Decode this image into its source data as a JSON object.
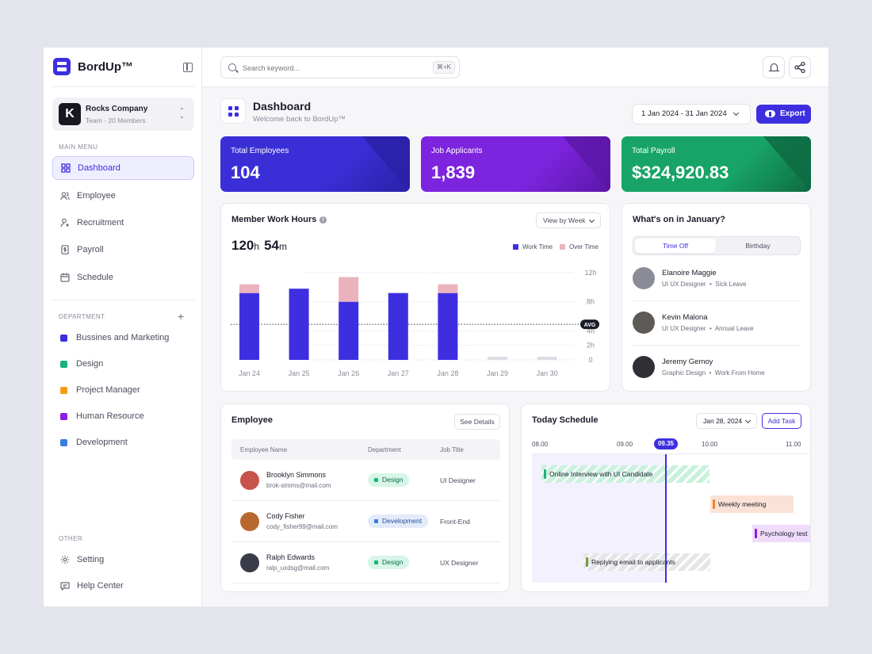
{
  "sidebar": {
    "brand": "BordUp™",
    "company": {
      "logo_letter": "K",
      "name": "Rocks Company",
      "sub": "Team - 20 Members"
    },
    "main_menu_title": "MAIN MENU",
    "main_menu": [
      "Dashboard",
      "Employee",
      "Recruitment",
      "Payroll",
      "Schedule"
    ],
    "department_title": "DEPARTMENT",
    "departments": [
      {
        "name": "Bussines and Marketing",
        "color": "#3d2fe0"
      },
      {
        "name": "Design",
        "color": "#17b47b"
      },
      {
        "name": "Project Manager",
        "color": "#f39c12"
      },
      {
        "name": "Human Resource",
        "color": "#8a1ee0"
      },
      {
        "name": "Development",
        "color": "#3b7de0"
      }
    ],
    "other_title": "OTHER",
    "other_menu": [
      "Setting",
      "Help Center"
    ]
  },
  "topbar": {
    "search_placeholder": "Search keyword...",
    "shortcut": "⌘+K"
  },
  "header": {
    "title": "Dashboard",
    "subtitle": "Welcome back to BordUp™",
    "date_range": "1 Jan 2024 - 31 Jan 2024",
    "export_label": "Export"
  },
  "stats": [
    {
      "label": "Total Employees",
      "value": "104",
      "color": "#3a2fd6",
      "dark": "#2a21a8"
    },
    {
      "label": "Job Applicants",
      "value": "1,839",
      "color": "#7d24de",
      "dark": "#5b17a8"
    },
    {
      "label": "Total Payroll",
      "value": "$324,920.83",
      "color": "#18a468",
      "dark": "#0e6b43"
    }
  ],
  "work_hours": {
    "title": "Member Work Hours",
    "view_label": "View by Week",
    "total_h": "120",
    "total_m": "54",
    "unit_h": "h",
    "unit_m": "m",
    "legend_work": "Work Time",
    "legend_over": "Over Time",
    "avg_label": "AVG"
  },
  "chart_data": {
    "type": "bar",
    "categories": [
      "Jan 24",
      "Jan 25",
      "Jan 26",
      "Jan 27",
      "Jan 28",
      "Jan 29",
      "Jan 30"
    ],
    "series": [
      {
        "name": "Work Time",
        "values": [
          9.2,
          9.8,
          8.0,
          9.2,
          9.2,
          0.4,
          0.4
        ],
        "color": "#3d2fe0"
      },
      {
        "name": "Over Time",
        "values": [
          1.2,
          0,
          3.4,
          0,
          1.2,
          0,
          0
        ],
        "color": "#ebb3bd"
      }
    ],
    "y_ticks": [
      "12h",
      "8h",
      "4h",
      "2h",
      "0"
    ],
    "ylim": [
      0,
      12
    ],
    "avg": 4.9
  },
  "january": {
    "title": "What's on in January?",
    "tabs": [
      "Time Off",
      "Birthday"
    ],
    "people": [
      {
        "name": "Elanoire Maggie",
        "role": "UI UX Designer",
        "note": "Sick Leave",
        "avatar": "#8a8c99"
      },
      {
        "name": "Kevin Malona",
        "role": "UI UX Designer",
        "note": "Annual Leave",
        "avatar": "#5e5a56"
      },
      {
        "name": "Jeremy Gemoy",
        "role": "Graphic Design",
        "note": "Work From Home",
        "avatar": "#2f2f36"
      }
    ]
  },
  "employee": {
    "title": "Employee",
    "see_details": "See Details",
    "columns": [
      "Employee Name",
      "Department",
      "Job Title"
    ],
    "rows": [
      {
        "name": "Brooklyn Simmons",
        "email": "brok-simms@mail.com",
        "dept": "Design",
        "job": "UI Designer",
        "badge_bg": "#d7f5e8",
        "badge_dot": "#17b47b",
        "avatar": "#c9524c"
      },
      {
        "name": "Cody Fisher",
        "email": "cody_fisher99@mail.com",
        "dept": "Development",
        "job": "Front-End",
        "badge_bg": "#e3ebfb",
        "badge_dot": "#3b7de0",
        "avatar": "#b8682e"
      },
      {
        "name": "Ralph Edwards",
        "email": "ralp_uxdsg@mail.com",
        "dept": "Design",
        "job": "UX Designer",
        "badge_bg": "#d7f5e8",
        "badge_dot": "#17b47b",
        "avatar": "#3a3b48"
      }
    ]
  },
  "schedule": {
    "title": "Today Schedule",
    "date": "Jan 28, 2024",
    "add_task": "Add Task",
    "times": [
      "08.00",
      "09.00",
      "10.00",
      "11.00"
    ],
    "now": "09.35",
    "events": [
      {
        "label": "Online Interview with UI Candidate",
        "bg": "#c9f1dc",
        "bar": "#17b47b",
        "striped": true
      },
      {
        "label": "Weekly meeting",
        "bg": "#fbe2d6",
        "bar": "#f0822f",
        "striped": false
      },
      {
        "label": "Psychology test",
        "bg": "#efdcfb",
        "bar": "#8a1ee0",
        "striped": false
      },
      {
        "label": "Replying email to applicants",
        "bg": "#e5e6e7",
        "bar": "#7a9a3a",
        "striped": true
      }
    ]
  }
}
